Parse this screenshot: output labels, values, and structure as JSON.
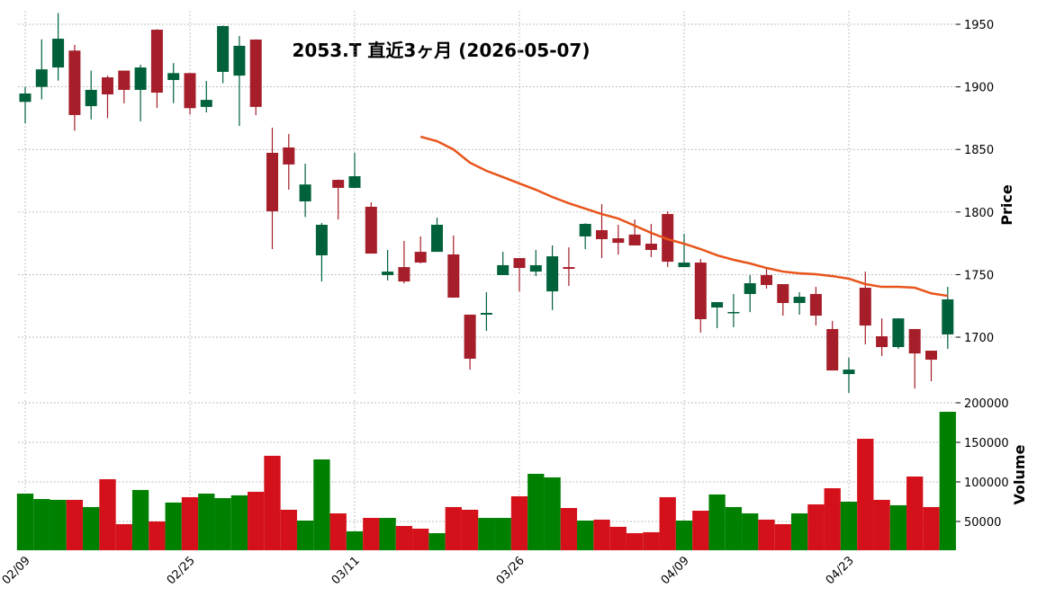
{
  "chart_data": [
    {
      "type": "candlestick",
      "title": "2053.T  直近3ヶ月  (2026-05-07)",
      "y_label": "Price",
      "categories": [
        "02/09",
        null,
        null,
        null,
        null,
        null,
        null,
        null,
        null,
        null,
        "02/25",
        null,
        null,
        null,
        null,
        null,
        null,
        null,
        null,
        null,
        "03/11",
        null,
        null,
        null,
        null,
        null,
        null,
        null,
        null,
        null,
        "03/26",
        null,
        null,
        null,
        null,
        null,
        null,
        null,
        null,
        null,
        "04/09",
        null,
        null,
        null,
        null,
        null,
        null,
        null,
        null,
        null,
        "04/23",
        null,
        null,
        null,
        null,
        null,
        null
      ],
      "open": [
        1888,
        1900,
        1915.5,
        1929,
        1884.6,
        1907.6,
        1913,
        1897.6,
        1945.7,
        1905.5,
        1911,
        1884,
        1912,
        1909,
        1937.8,
        1847.3,
        1851.6,
        1808.5,
        1765.4,
        1825.7,
        1819.3,
        1804.2,
        1749.6,
        1756,
        1768.2,
        1768.2,
        1766.1,
        1718,
        1718,
        1749.6,
        1763.2,
        1752.4,
        1736.6,
        1756,
        1780.5,
        1785.5,
        1779,
        1782,
        1774.7,
        1798.4,
        1756,
        1759.6,
        1723.7,
        1719.4,
        1734.5,
        1749.6,
        1742.4,
        1727.3,
        1734.5,
        1706.5,
        1670.5,
        1739.5,
        1700.7,
        1692.1,
        1706.5,
        1689.2,
        1702.2
      ],
      "high": [
        1900,
        1938,
        1959,
        1933.5,
        1913,
        1909,
        1913,
        1917.7,
        1946,
        1919,
        1911,
        1904.7,
        1949,
        1940.7,
        1938,
        1867.4,
        1862.4,
        1838.6,
        1791.2,
        1826,
        1847.3,
        1807.8,
        1769.7,
        1776.9,
        1780.5,
        1795.5,
        1781.2,
        1718,
        1735.9,
        1768.2,
        1763.2,
        1769.7,
        1773.3,
        1771.8,
        1791,
        1806.3,
        1789.8,
        1794,
        1790.5,
        1800.6,
        1782.6,
        1762.5,
        1728,
        1734.5,
        1749.6,
        1755.3,
        1742.4,
        1735.9,
        1740.2,
        1713,
        1683.5,
        1752.4,
        1715,
        1715,
        1706.5,
        1689.2,
        1740.2
      ],
      "low": [
        1871,
        1890,
        1905,
        1865,
        1874,
        1875,
        1886.8,
        1872.4,
        1883.2,
        1887,
        1878,
        1879.6,
        1903,
        1868.8,
        1877.4,
        1770.4,
        1817.8,
        1796,
        1744.5,
        1794,
        1819.3,
        1766.8,
        1745.3,
        1743,
        1759,
        1768.2,
        1731.6,
        1674,
        1705,
        1749.6,
        1736.6,
        1748.8,
        1721.6,
        1741,
        1770.4,
        1763.2,
        1766,
        1773.3,
        1764,
        1756,
        1756,
        1703.6,
        1707.2,
        1707.9,
        1720,
        1738.8,
        1717.2,
        1718,
        1709.3,
        1673.4,
        1655.5,
        1694.2,
        1684.9,
        1690.7,
        1659,
        1664.8,
        1690.7
      ],
      "close": [
        1894.7,
        1914,
        1938.5,
        1877.5,
        1897.6,
        1894,
        1897.6,
        1915.5,
        1895.4,
        1911,
        1883,
        1889.6,
        1948.6,
        1932.8,
        1884,
        1800.6,
        1838,
        1822,
        1789.8,
        1819.3,
        1828.6,
        1766.8,
        1752.4,
        1744.5,
        1759.6,
        1789.8,
        1731.6,
        1682.8,
        1719.4,
        1757.5,
        1755.3,
        1757.5,
        1764.6,
        1754.6,
        1790.5,
        1778.3,
        1775.4,
        1773.3,
        1769.7,
        1760.3,
        1759.6,
        1714.4,
        1728,
        1720.1,
        1743.1,
        1741.7,
        1727.3,
        1732.3,
        1717.2,
        1673.4,
        1674.1,
        1709.3,
        1692.1,
        1715,
        1687,
        1682,
        1730.2
      ],
      "up_color": "#00613b",
      "down_color": "#a51e2a",
      "ma": {
        "color": "#e8541a",
        "values": [
          null,
          null,
          null,
          null,
          null,
          null,
          null,
          null,
          null,
          null,
          null,
          null,
          null,
          null,
          null,
          null,
          null,
          null,
          null,
          null,
          null,
          null,
          null,
          null,
          1860.2,
          1856.6,
          1850,
          1839.4,
          1832.9,
          1827.9,
          1822.8,
          1817.8,
          1812,
          1807,
          1802.7,
          1798.4,
          1794.8,
          1789.1,
          1783.3,
          1778.3,
          1774.7,
          1770.4,
          1765.4,
          1761.8,
          1758.9,
          1755.3,
          1752.4,
          1751,
          1750.3,
          1748.8,
          1746.7,
          1742.4,
          1740.2,
          1740.2,
          1739.5,
          1735,
          1733
        ]
      },
      "ylim": [
        1653.3,
        1960.8
      ],
      "yticks": [
        1700,
        1750,
        1800,
        1850,
        1900,
        1950
      ],
      "grid": true
    },
    {
      "type": "bar",
      "y_label": "Volume",
      "values": [
        85200,
        78400,
        77300,
        77300,
        68200,
        103400,
        46600,
        89800,
        50000,
        73900,
        80700,
        85200,
        79500,
        83000,
        87500,
        133000,
        64800,
        51100,
        128400,
        60200,
        37500,
        54500,
        54500,
        44300,
        40900,
        35200,
        68200,
        64800,
        54500,
        54500,
        81800,
        110200,
        105700,
        67000,
        51100,
        52300,
        43200,
        35200,
        36400,
        80700,
        51100,
        63600,
        84100,
        68200,
        60200,
        52300,
        46600,
        60200,
        71600,
        92000,
        75000,
        154500,
        77300,
        70500,
        106800,
        68200,
        188600
      ],
      "up_color": "#008000",
      "down_color": "#d4111b",
      "ylim": [
        13600,
        203400
      ],
      "yticks": [
        50000,
        100000,
        150000,
        200000
      ],
      "grid": true
    }
  ]
}
